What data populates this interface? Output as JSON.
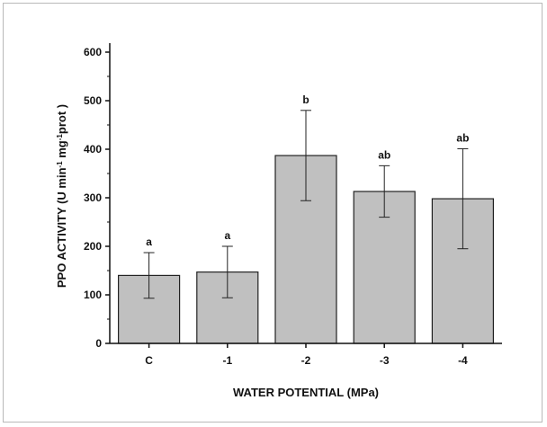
{
  "chart_data": {
    "type": "bar",
    "categories": [
      "C",
      "-1",
      "-2",
      "-3",
      "-4"
    ],
    "values": [
      140,
      147,
      387,
      313,
      298
    ],
    "error": [
      47,
      53,
      93,
      53,
      103
    ],
    "significance": [
      "a",
      "a",
      "b",
      "ab",
      "ab"
    ],
    "xlabel": "WATER POTENTIAL (MPa)",
    "ylabel": {
      "prefix": "PPO ACTIVITY (U min",
      "sup1": "-1",
      "mid": " mg",
      "sup2": "-1",
      "suffix": "prot )"
    },
    "ylim": [
      0,
      600
    ],
    "yticks": [
      0,
      100,
      200,
      300,
      400,
      500,
      600
    ],
    "bar_color": "#c0c0c0",
    "grid": false
  }
}
